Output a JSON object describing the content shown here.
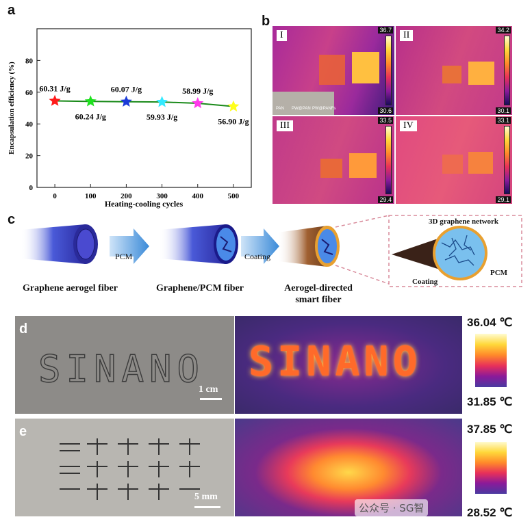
{
  "panels": {
    "a": "a",
    "b": "b",
    "c": "c",
    "d": "d",
    "e": "e"
  },
  "chart_data": {
    "type": "scatter",
    "title": "",
    "xlabel": "Heating-cooling cycles",
    "ylabel": "Encapsulation efficiency (%)",
    "xlim": [
      -50,
      550
    ],
    "ylim": [
      0,
      100
    ],
    "xticks": [
      "0",
      "100",
      "200",
      "300",
      "400",
      "500"
    ],
    "yticks": [
      "0",
      "20",
      "40",
      "60",
      "80"
    ],
    "x": [
      0,
      100,
      200,
      300,
      400,
      500
    ],
    "y": [
      54.5,
      54.2,
      54.0,
      53.8,
      53.0,
      51.0
    ],
    "point_colors": [
      "#ff1a1a",
      "#1ee01e",
      "#1a3ad8",
      "#33eaff",
      "#ff3aea",
      "#ffff1a"
    ],
    "line_color": "#1a8a1a",
    "annotations": [
      "60.31 J/g",
      "60.24 J/g",
      "60.07 J/g",
      "59.93 J/g",
      "58.99 J/g",
      "56.90 J/g"
    ]
  },
  "thermal": [
    {
      "label": "I",
      "max": "36.7",
      "min": "30.6",
      "inset": [
        "PAN",
        "PW@PAN",
        "PW@PANFs"
      ]
    },
    {
      "label": "II",
      "max": "34.2",
      "min": "30.1"
    },
    {
      "label": "III",
      "max": "33.5",
      "min": "29.4"
    },
    {
      "label": "IV",
      "max": "33.1",
      "min": "29.1"
    }
  ],
  "schematic": {
    "arrow1": "PCM",
    "arrow2": "Coating",
    "cap1": "Graphene aerogel fiber",
    "cap2": "Graphene/PCM fiber",
    "cap3a": "Aerogel-directed",
    "cap3b": "smart fiber",
    "inset_network": "3D graphene network",
    "inset_pcm": "PCM",
    "inset_coating": "Coating"
  },
  "photo_d": {
    "text": "SINANO",
    "scale": "1 cm",
    "tmax": "36.04 ℃",
    "tmin": "31.85 ℃"
  },
  "photo_e": {
    "scale": "5 mm",
    "tmax": "37.85 ℃",
    "tmin": "28.52 ℃"
  },
  "watermark": "公众号 · SG智"
}
